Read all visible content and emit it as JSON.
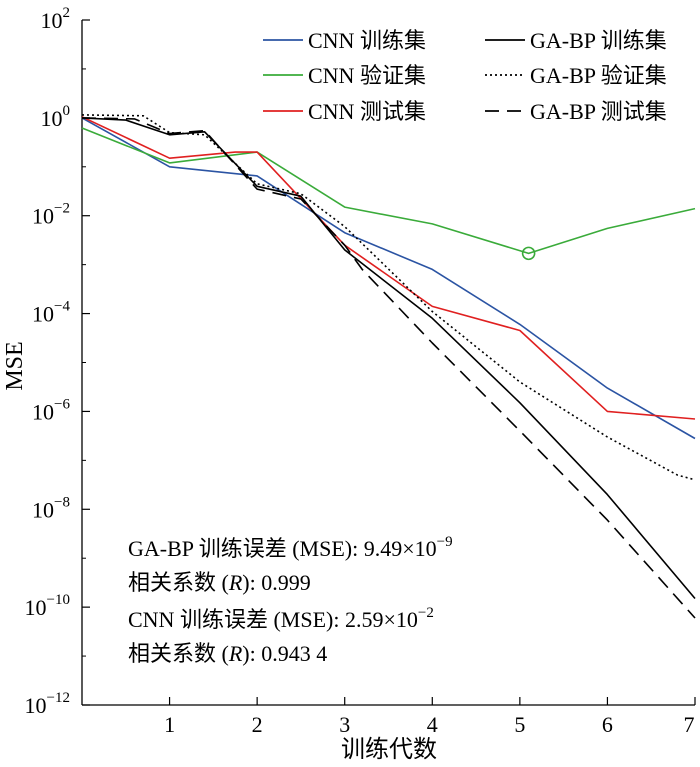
{
  "chart_data": {
    "type": "line",
    "ylabel": "MSE",
    "xlabel": "训练代数",
    "xlim": [
      0,
      7
    ],
    "ylim_log10": [
      -12,
      2
    ],
    "y_scale": "log",
    "xticks": [
      1,
      2,
      3,
      4,
      5,
      6,
      7
    ],
    "yticks": [
      {
        "exp": 2,
        "base": "10",
        "sup": "2"
      },
      {
        "exp": 0,
        "base": "10",
        "sup": "0"
      },
      {
        "exp": -2,
        "base": "10",
        "sup": "−2"
      },
      {
        "exp": -4,
        "base": "10",
        "sup": "−4"
      },
      {
        "exp": -6,
        "base": "10",
        "sup": "−6"
      },
      {
        "exp": -8,
        "base": "10",
        "sup": "−8"
      },
      {
        "exp": -10,
        "base": "10",
        "sup": "−10"
      },
      {
        "exp": -12,
        "base": "10",
        "sup": "−12"
      }
    ],
    "series": [
      {
        "name": "CNN 训练集",
        "color": "#2b54a3",
        "dash": "solid",
        "x": [
          0,
          1,
          2,
          3,
          4,
          5,
          6,
          7
        ],
        "y": [
          1.0,
          0.1,
          0.065,
          0.0045,
          0.0008,
          6e-05,
          3e-06,
          2.8e-07
        ]
      },
      {
        "name": "CNN 验证集",
        "color": "#3aab3a",
        "dash": "solid",
        "x": [
          0,
          1,
          2,
          3,
          4,
          5.1,
          6,
          7
        ],
        "y": [
          0.62,
          0.12,
          0.2,
          0.015,
          0.0068,
          0.0017,
          0.0055,
          0.014
        ]
      },
      {
        "name": "CNN 测试集",
        "color": "#e02020",
        "dash": "solid",
        "x": [
          0,
          1,
          1.75,
          2,
          3,
          4,
          5,
          6,
          7
        ],
        "y": [
          1.05,
          0.15,
          0.2,
          0.2,
          0.0025,
          0.00014,
          4.5e-05,
          1e-06,
          7e-07
        ]
      },
      {
        "name": "GA-BP 训练集",
        "color": "#000000",
        "dash": "solid",
        "x": [
          0,
          0.5,
          1,
          1.4,
          2,
          2.5,
          3,
          4,
          5,
          6,
          7
        ],
        "y": [
          1.0,
          0.9,
          0.45,
          0.52,
          0.04,
          0.025,
          0.002,
          8e-05,
          1.5e-06,
          2e-08,
          1.5e-10
        ]
      },
      {
        "name": "GA-BP 验证集",
        "color": "#000000",
        "dash": "dotted",
        "x": [
          0,
          0.7,
          1,
          1.4,
          2,
          2.5,
          3,
          4,
          5,
          6,
          6.8,
          7
        ],
        "y": [
          1.15,
          1.1,
          0.5,
          0.45,
          0.045,
          0.028,
          0.006,
          0.00011,
          4e-06,
          3e-07,
          5e-08,
          4e-08
        ]
      },
      {
        "name": "GA-BP 测试集",
        "color": "#000000",
        "dash": "dashed",
        "x": [
          0,
          0.6,
          1,
          1.4,
          2,
          2.5,
          3,
          3.2,
          4,
          5,
          6,
          7
        ],
        "y": [
          1.0,
          0.95,
          0.48,
          0.55,
          0.035,
          0.022,
          0.0025,
          0.0008,
          2.5e-05,
          4e-07,
          6e-09,
          6e-11
        ]
      }
    ],
    "marker": {
      "x": 5.1,
      "y": 0.0017,
      "color": "#3aab3a",
      "shape": "circle"
    },
    "legend": {
      "placement": "top-right",
      "columns": 2,
      "order": [
        0,
        3,
        1,
        4,
        2,
        5
      ]
    },
    "annotations": [
      {
        "prefix": "GA-BP 训练误差 (MSE): 9.49×10",
        "sup": "−9",
        "suffix": ""
      },
      {
        "prefix": "相关系数 (",
        "italic": "R",
        "suffix": "): 0.999"
      },
      {
        "prefix": "CNN 训练误差 (MSE): 2.59×10",
        "sup": "−2",
        "suffix": ""
      },
      {
        "prefix": "相关系数 (",
        "italic": "R",
        "suffix": "): 0.943 4"
      }
    ]
  }
}
